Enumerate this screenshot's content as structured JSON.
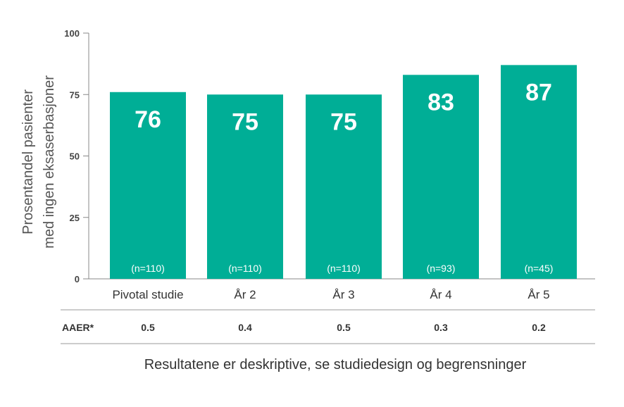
{
  "chart_data": {
    "type": "bar",
    "ylabel": [
      "Prosentandel pasienter",
      "med ingen eksaserbasjoner"
    ],
    "ylim": [
      0,
      100
    ],
    "yticks": [
      0,
      25,
      50,
      75,
      100
    ],
    "categories": [
      "Pivotal studie",
      "År 2",
      "År 3",
      "År 4",
      "År 5"
    ],
    "values": [
      76,
      75,
      75,
      83,
      87
    ],
    "value_labels": [
      "76",
      "75",
      "75",
      "83",
      "87"
    ],
    "n_labels": [
      "(n=110)",
      "(n=110)",
      "(n=110)",
      "(n=93)",
      "(n=45)"
    ],
    "bar_color": "#00ae96",
    "grid": false
  },
  "table": {
    "row_label": "AAER*",
    "values": [
      "0.5",
      "0.4",
      "0.5",
      "0.3",
      "0.2"
    ]
  },
  "footer": "Resultatene er deskriptive, se studiedesign og begrensninger"
}
